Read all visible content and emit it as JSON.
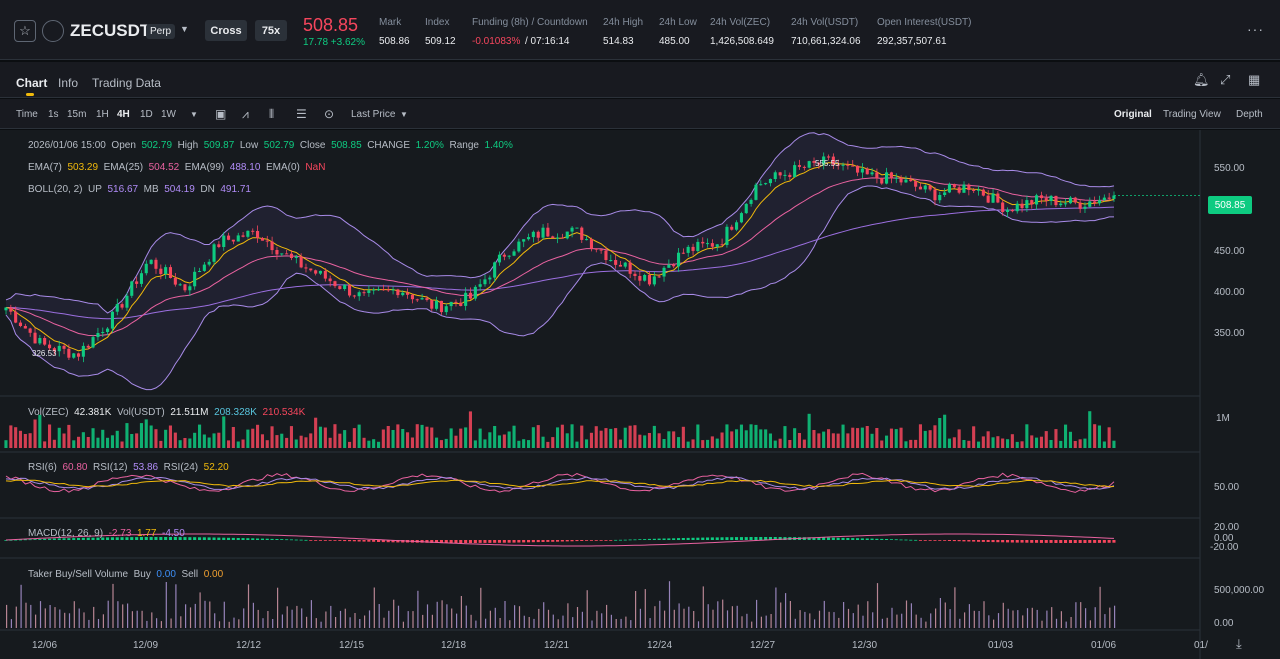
{
  "header": {
    "symbol": "ZECUSDT",
    "contract_type": "Perp",
    "margin_mode": "Cross",
    "leverage": "75x",
    "last_price": "508.85",
    "price_change": "17.78 +3.62%",
    "stats": [
      {
        "label": "Mark",
        "value": "508.86"
      },
      {
        "label": "Index",
        "value": "509.12"
      },
      {
        "label": "Funding (8h) / Countdown",
        "value": "-0.01083%",
        "value2": "/ 07:16:14"
      },
      {
        "label": "24h High",
        "value": "514.83"
      },
      {
        "label": "24h Low",
        "value": "485.00"
      },
      {
        "label": "24h Vol(ZEC)",
        "value": "1,426,508.649"
      },
      {
        "label": "24h Vol(USDT)",
        "value": "710,661,324.06"
      },
      {
        "label": "Open Interest(USDT)",
        "value": "292,357,507.61"
      }
    ],
    "more_icon": "more-dots-icon",
    "colors": {
      "up": "#0ecb81",
      "down": "#f6465d",
      "accent": "#f0b90b"
    }
  },
  "tabs": [
    "Chart",
    "Info",
    "Trading Data"
  ],
  "toolbar": {
    "intervals": [
      "Time",
      "1s",
      "15m",
      "1H",
      "4H",
      "1D",
      "1W"
    ],
    "active_interval": "4H",
    "price_type": "Last Price",
    "views": [
      "Original",
      "Trading View",
      "Depth"
    ],
    "active_view": "Original"
  },
  "chart_info": {
    "ohlc": {
      "date": "2026/01/06 15:00",
      "open": "502.79",
      "high": "509.87",
      "low": "502.79",
      "close": "508.85",
      "change": "1.20%",
      "range": "1.40%"
    },
    "ema": {
      "ema7": "503.29",
      "ema25": "504.52",
      "ema99": "488.10",
      "ema0": "NaN"
    },
    "boll": {
      "label": "BOLL(20, 2)",
      "up": "516.67",
      "mb": "504.19",
      "dn": "491.71"
    },
    "vol": {
      "label_zec": "Vol(ZEC)",
      "zec": "42.381K",
      "label_usdt": "Vol(USDT)",
      "usdt": "21.511M",
      "ma1": "208.328K",
      "ma2": "210.534K"
    },
    "rsi": {
      "rsi6": "60.80",
      "rsi12": "53.86",
      "rsi24": "52.20"
    },
    "macd": {
      "label": "MACD(12, 26, 9)",
      "dif": "-2.73",
      "dea": "1.77",
      "hist": "-4.50"
    },
    "taker": {
      "label": "Taker Buy/Sell Volume",
      "buy": "0.00",
      "sell": "0.00"
    }
  },
  "axes": {
    "price_ticks": [
      "550.00",
      "500.00",
      "450.00",
      "400.00",
      "350.00"
    ],
    "vol_tick": "1M",
    "rsi_tick": "50.00",
    "macd_ticks": [
      "20.00",
      "0.00",
      "-20.00"
    ],
    "taker_ticks": [
      "500,000.00",
      "0.00"
    ],
    "dates": [
      "12/06",
      "12/09",
      "12/12",
      "12/15",
      "12/18",
      "12/21",
      "12/24",
      "12/27",
      "12/30",
      "01/03",
      "01/06",
      "01/"
    ],
    "current_price_tag": "508.85",
    "max_label": "555.55",
    "min_label": "326.53"
  },
  "chart_data": {
    "type": "line",
    "title": "",
    "x": [
      "12/06",
      "12/07",
      "12/08",
      "12/09",
      "12/10",
      "12/11",
      "12/12",
      "12/13",
      "12/14",
      "12/15",
      "12/16",
      "12/17",
      "12/18",
      "12/19",
      "12/20",
      "12/21",
      "12/22",
      "12/23",
      "12/24",
      "12/25",
      "12/26",
      "12/27",
      "12/28",
      "12/29",
      "12/30",
      "12/31",
      "01/01",
      "01/02",
      "01/03",
      "01/04",
      "01/05",
      "01/06"
    ],
    "series": [
      {
        "name": "Close",
        "values": [
          390,
          350,
          340,
          380,
          440,
          410,
          460,
          470,
          440,
          420,
          400,
          410,
          390,
          400,
          450,
          470,
          470,
          440,
          420,
          450,
          460,
          520,
          535,
          545,
          530,
          525,
          510,
          520,
          495,
          505,
          500,
          508.85
        ]
      }
    ],
    "ylim": [
      300,
      570
    ],
    "xlabel": "",
    "ylabel": ""
  }
}
